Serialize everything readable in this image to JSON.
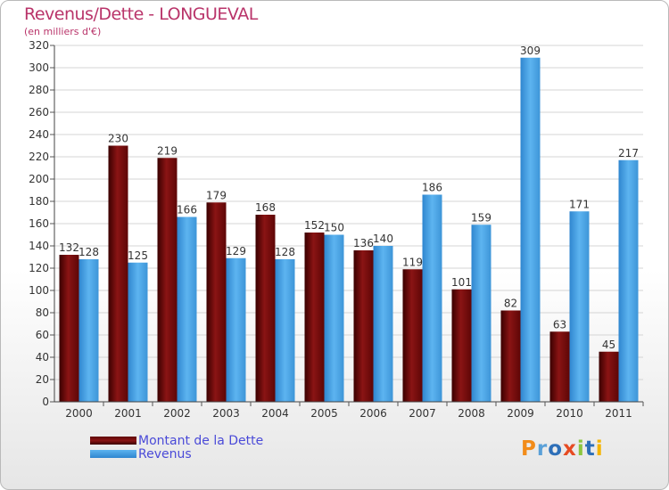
{
  "chart_data": {
    "type": "bar",
    "title": "Revenus/Dette - LONGUEVAL",
    "subtitle": "(en milliers d'€)",
    "categories": [
      "2000",
      "2001",
      "2002",
      "2003",
      "2004",
      "2005",
      "2006",
      "2007",
      "2008",
      "2009",
      "2010",
      "2011"
    ],
    "series": [
      {
        "name": "Montant de la Dette",
        "color": "#7a0c0c",
        "values": [
          132,
          230,
          219,
          179,
          168,
          152,
          136,
          119,
          101,
          82,
          63,
          45
        ]
      },
      {
        "name": "Revenus",
        "color": "#4aa3e6",
        "values": [
          128,
          125,
          166,
          129,
          128,
          150,
          140,
          186,
          159,
          309,
          171,
          217
        ]
      }
    ],
    "ylim": [
      0,
      320
    ],
    "yticks": [
      0,
      20,
      40,
      60,
      80,
      100,
      120,
      140,
      160,
      180,
      200,
      220,
      240,
      260,
      280,
      300,
      320
    ],
    "grid": true,
    "legend_position": "bottom-left"
  },
  "logo": {
    "letters": [
      {
        "char": "P",
        "color": "#f28c1a"
      },
      {
        "char": "r",
        "color": "#5aa0d8"
      },
      {
        "char": "o",
        "color": "#2d6fb8"
      },
      {
        "char": "x",
        "color": "#e64b22"
      },
      {
        "char": "i",
        "color": "#8cc63f"
      },
      {
        "char": "t",
        "color": "#2d6fb8"
      },
      {
        "char": "i",
        "color": "#f5b400"
      }
    ]
  }
}
